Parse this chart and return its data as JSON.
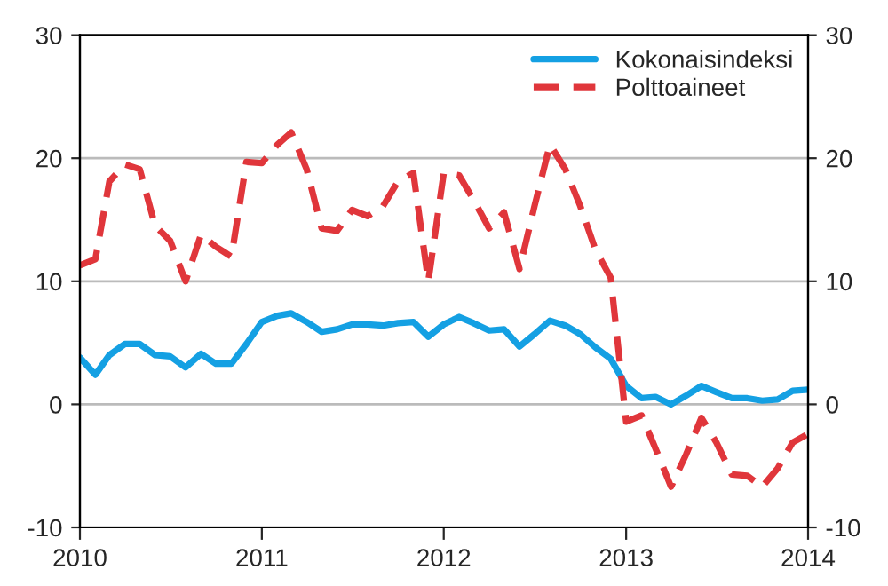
{
  "chart_data": {
    "type": "line",
    "x": [
      "2010-01",
      "2010-02",
      "2010-03",
      "2010-04",
      "2010-05",
      "2010-06",
      "2010-07",
      "2010-08",
      "2010-09",
      "2010-10",
      "2010-11",
      "2010-12",
      "2011-01",
      "2011-02",
      "2011-03",
      "2011-04",
      "2011-05",
      "2011-06",
      "2011-07",
      "2011-08",
      "2011-09",
      "2011-10",
      "2011-11",
      "2011-12",
      "2012-01",
      "2012-02",
      "2012-03",
      "2012-04",
      "2012-05",
      "2012-06",
      "2012-07",
      "2012-08",
      "2012-09",
      "2012-10",
      "2012-11",
      "2012-12",
      "2013-01",
      "2013-02",
      "2013-03",
      "2013-04",
      "2013-05",
      "2013-06",
      "2013-07",
      "2013-08",
      "2013-09",
      "2013-10",
      "2013-11",
      "2013-12",
      "2014-01"
    ],
    "series": [
      {
        "name": "Kokonaisindeksi",
        "color": "#14a0e3",
        "line_style": "solid",
        "values": [
          3.8,
          2.4,
          4.0,
          4.9,
          4.9,
          4.0,
          3.9,
          3.0,
          4.1,
          3.3,
          3.3,
          4.9,
          6.7,
          7.2,
          7.4,
          6.7,
          5.9,
          6.1,
          6.5,
          6.5,
          6.4,
          6.6,
          6.7,
          5.5,
          6.5,
          7.1,
          6.6,
          6.0,
          6.1,
          4.7,
          5.7,
          6.8,
          6.4,
          5.7,
          4.6,
          3.7,
          1.5,
          0.5,
          0.6,
          0.0,
          0.7,
          1.5,
          1.0,
          0.5,
          0.5,
          0.3,
          0.4,
          1.1,
          1.2
        ]
      },
      {
        "name": "Polttoaineet",
        "color": "#e0363b",
        "line_style": "dashed",
        "values": [
          11.3,
          11.8,
          18.1,
          19.5,
          19.1,
          14.5,
          13.3,
          10.0,
          13.8,
          12.8,
          12.0,
          19.7,
          19.6,
          21.1,
          22.1,
          19.1,
          14.3,
          14.1,
          15.8,
          15.3,
          16.1,
          18.1,
          18.8,
          10.0,
          18.8,
          18.6,
          16.6,
          14.3,
          15.6,
          11.0,
          16.1,
          21.1,
          19.1,
          16.1,
          12.5,
          10.3,
          -1.4,
          -0.9,
          -3.6,
          -6.7,
          -4.1,
          -1.1,
          -3.1,
          -5.7,
          -5.8,
          -6.7,
          -5.2,
          -3.1,
          -2.4
        ]
      }
    ],
    "xlim": [
      "2010-01",
      "2014-01"
    ],
    "xticks": [
      "2010",
      "2011",
      "2012",
      "2013",
      "2014"
    ],
    "ylim": [
      -10,
      30
    ],
    "yticks": [
      -10,
      0,
      10,
      20,
      30
    ],
    "y2lim": [
      -10,
      30
    ],
    "y2ticks": [
      -10,
      0,
      10,
      20,
      30
    ],
    "grid": "y",
    "legend": "top right"
  }
}
